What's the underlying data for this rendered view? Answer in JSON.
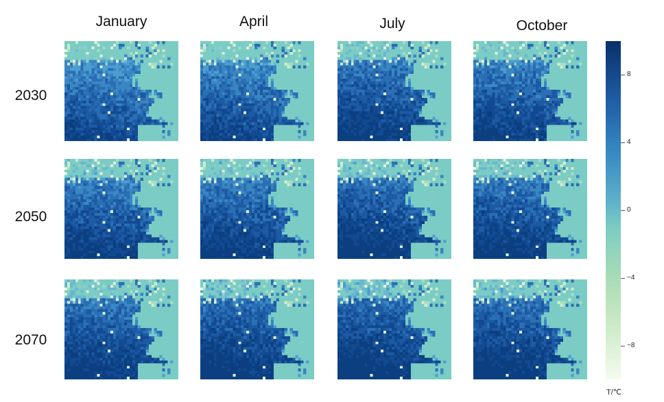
{
  "chart_data": {
    "type": "heatmap",
    "columns": [
      "January",
      "April",
      "July",
      "October"
    ],
    "rows": [
      "2030",
      "2050",
      "2070"
    ],
    "colorbar": {
      "label": "T/℃",
      "ticks": [
        "8",
        "4",
        "0",
        "−4",
        "−8"
      ],
      "tick_values": [
        8,
        4,
        0,
        -4,
        -8
      ],
      "range": [
        -10,
        10
      ],
      "colormap": "GnBu",
      "colors": [
        "#f4fbef",
        "#ccebc5",
        "#a8dcb5",
        "#7bccc4",
        "#60b3c9",
        "#3b8fc4",
        "#1f5fa6",
        "#08306b"
      ]
    },
    "background_value_color": "#7bccc4",
    "panel_intensity": [
      [
        0.55,
        0.58,
        0.72,
        0.66
      ],
      [
        0.68,
        0.7,
        0.78,
        0.74
      ],
      [
        0.74,
        0.8,
        0.82,
        0.8
      ]
    ]
  }
}
